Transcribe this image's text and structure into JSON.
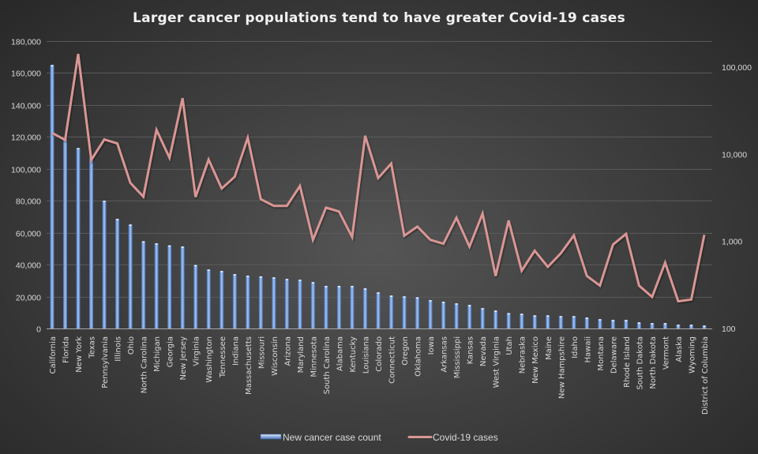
{
  "chart_data": {
    "type": "bar",
    "title": "Larger cancer populations tend to have greater Covid-19 cases",
    "xlabel": "",
    "ylabel": "",
    "y2label": "",
    "categories": [
      "California",
      "Florida",
      "New York",
      "Texas",
      "Pennsylvania",
      "Illinois",
      "Ohio",
      "North Carolina",
      "Michigan",
      "Georgia",
      "New Jersey",
      "Virginia",
      "Washington",
      "Tennessee",
      "Indiana",
      "Massachusetts",
      "Missouri",
      "Wisconsin",
      "Arizona",
      "Maryland",
      "Minnesota",
      "South Carolina",
      "Alabama",
      "Kentucky",
      "Louisiana",
      "Colorado",
      "Connecticut",
      "Oregon",
      "Oklahoma",
      "Iowa",
      "Arkansas",
      "Mississippi",
      "Kansas",
      "Nevada",
      "West Virginia",
      "Utah",
      "Nebraska",
      "New Mexico",
      "Maine",
      "New Hampshire",
      "Idaho",
      "Hawaii",
      "Montana",
      "Delaware",
      "Rhode Island",
      "South Dakota",
      "North Dakota",
      "Vermont",
      "Alaska",
      "Wyoming",
      "District of Columbia"
    ],
    "series": [
      {
        "name": "New cancer case count",
        "type": "bar",
        "axis": "left",
        "color": "#6f9be0",
        "values": [
          165000,
          119000,
          113000,
          107000,
          80000,
          68600,
          65100,
          54600,
          53300,
          52000,
          51300,
          39700,
          36900,
          36000,
          34000,
          33000,
          32600,
          32000,
          31000,
          30500,
          29000,
          26600,
          26600,
          26600,
          25100,
          22600,
          20600,
          20100,
          19500,
          17700,
          16700,
          15700,
          14700,
          12700,
          11200,
          9600,
          9200,
          8200,
          8200,
          7700,
          7700,
          6800,
          5800,
          5300,
          5300,
          3800,
          3300,
          3300,
          2300,
          2300,
          1800
        ]
      },
      {
        "name": "Covid-19 cases",
        "type": "line",
        "axis": "right",
        "color": "#d99694",
        "values": [
          17600,
          14600,
          142000,
          8600,
          14800,
          13300,
          4700,
          3250,
          19100,
          9100,
          44100,
          3230,
          8700,
          4040,
          5530,
          15500,
          3050,
          2560,
          2560,
          4330,
          1040,
          2440,
          2200,
          1120,
          16300,
          5340,
          7830,
          1160,
          1480,
          1040,
          940,
          1870,
          870,
          2090,
          400,
          1740,
          460,
          780,
          510,
          730,
          1170,
          400,
          310,
          920,
          1220,
          310,
          230,
          570,
          205,
          215,
          1190
        ]
      }
    ],
    "y_left": {
      "scale": "linear",
      "ylim": [
        0,
        180000
      ],
      "ticks": [
        "0",
        "20,000",
        "40,000",
        "60,000",
        "80,000",
        "100,000",
        "120,000",
        "140,000",
        "160,000",
        "180,000"
      ]
    },
    "y_right": {
      "scale": "log",
      "ylim": [
        100,
        200000
      ],
      "ticks": [
        "100",
        "1,000",
        "10,000",
        "100,000"
      ]
    },
    "grid": true,
    "legend": {
      "placement": "bottom",
      "entries": [
        "New cancer case count",
        "Covid-19 cases"
      ]
    }
  }
}
